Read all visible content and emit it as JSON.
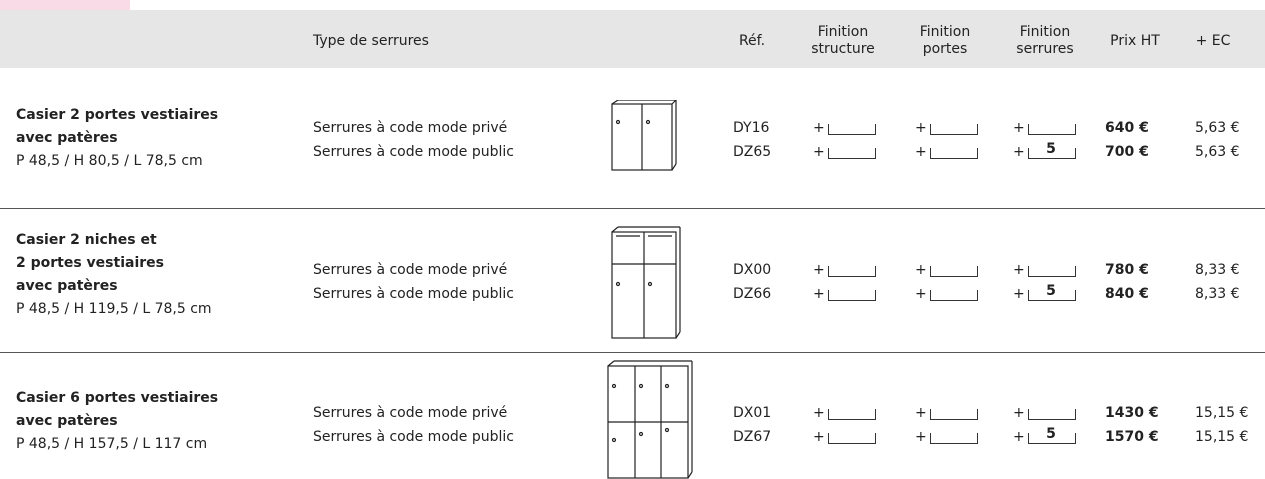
{
  "header": {
    "type_label": "Type de serrures",
    "ref_label": "Réf.",
    "finition_structure": [
      "Finition",
      "structure"
    ],
    "finition_portes": [
      "Finition",
      "portes"
    ],
    "finition_serrures": [
      "Finition",
      "serrures"
    ],
    "price_label": "Prix HT",
    "ec_label": "+ EC"
  },
  "finish_prefix": "+",
  "rows": [
    {
      "name_lines": [
        "Casier 2 portes vestiaires",
        "avec patères"
      ],
      "dimensions": "P 48,5 / H 80,5 / L 78,5 cm",
      "options": [
        {
          "lock": "Serrures à code mode privé",
          "ref": "DY16",
          "price": "640 €",
          "ec": "5,63 €"
        },
        {
          "lock": "Serrures à code mode public",
          "ref": "DZ65",
          "serrures_code": "5",
          "price": "700 €",
          "ec": "5,63 €"
        }
      ]
    },
    {
      "name_lines": [
        "Casier 2 niches et",
        "2 portes vestiaires",
        "avec patères"
      ],
      "dimensions": "P 48,5 / H 119,5 / L 78,5 cm",
      "options": [
        {
          "lock": "Serrures à code mode privé",
          "ref": "DX00",
          "price": "780 €",
          "ec": "8,33 €"
        },
        {
          "lock": "Serrures à code mode public",
          "ref": "DZ66",
          "serrures_code": "5",
          "price": "840 €",
          "ec": "8,33 €"
        }
      ]
    },
    {
      "name_lines": [
        "Casier 6 portes vestiaires",
        "avec patères"
      ],
      "dimensions": "P 48,5 / H 157,5 / L 117 cm",
      "options": [
        {
          "lock": "Serrures à code mode privé",
          "ref": "DX01",
          "price": "1430 €",
          "ec": "15,15 €"
        },
        {
          "lock": "Serrures à code mode public",
          "ref": "DZ67",
          "serrures_code": "5",
          "price": "1570 €",
          "ec": "15,15 €"
        }
      ]
    }
  ]
}
